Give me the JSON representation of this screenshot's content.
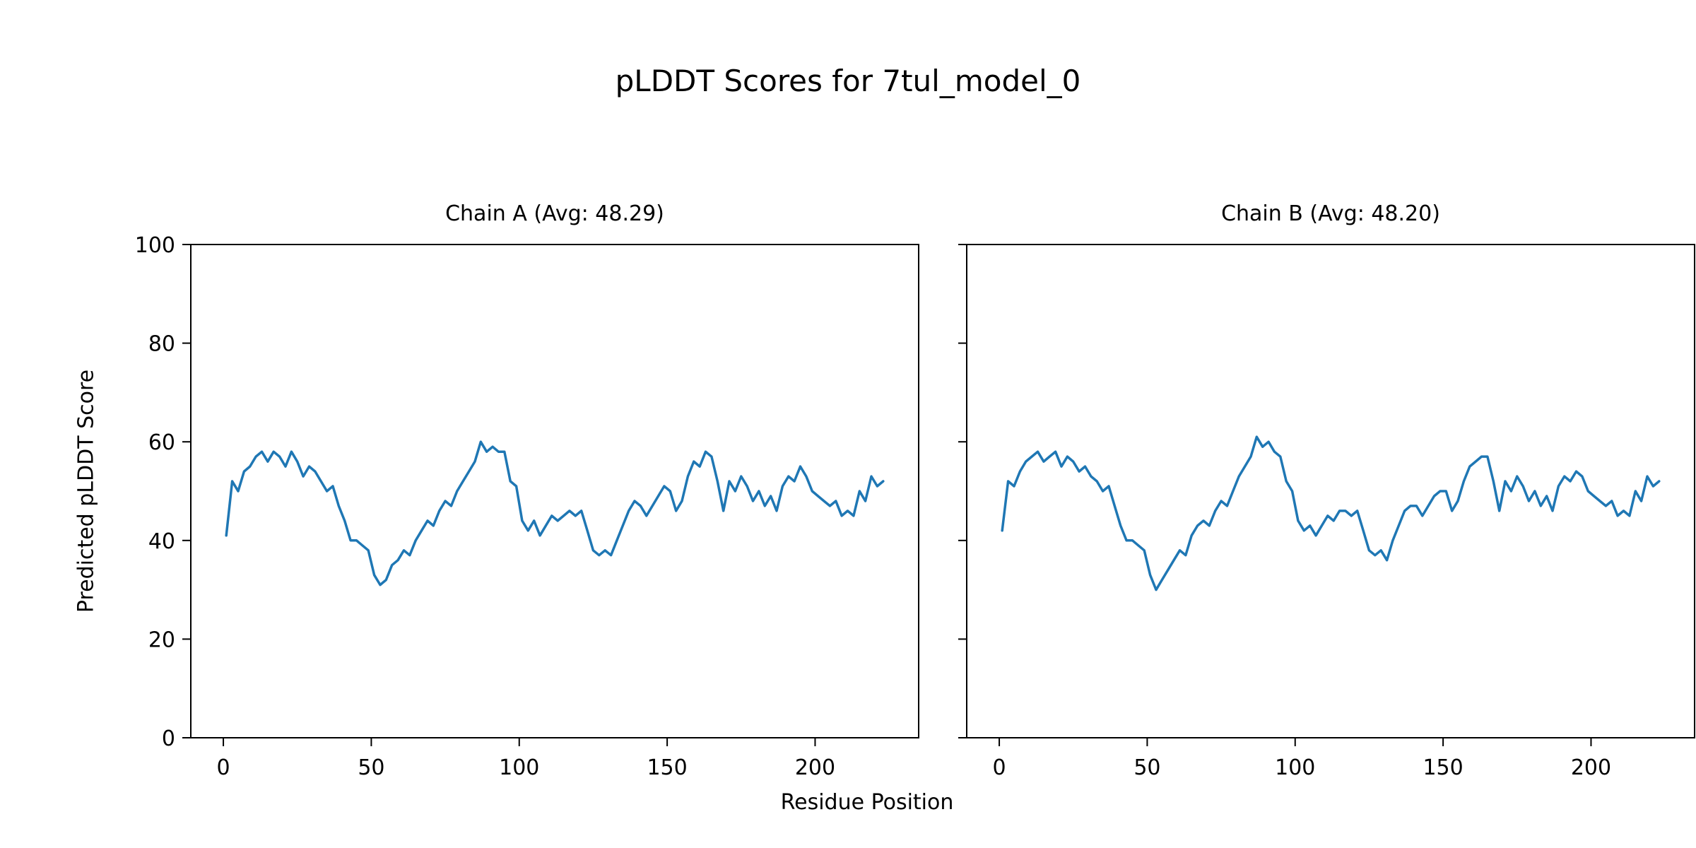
{
  "chart_data": {
    "type": "line",
    "suptitle": "pLDDT Scores for 7tul_model_0",
    "xlabel": "Residue Position",
    "ylabel": "Predicted pLDDT Score",
    "line_color": "#1f77b4",
    "background": "#ffffff",
    "grid": false,
    "legend": "none",
    "xlim": [
      -11,
      235
    ],
    "ylim": [
      0,
      100
    ],
    "xticks": [
      0,
      50,
      100,
      150,
      200
    ],
    "yticks": [
      0,
      20,
      40,
      60,
      80,
      100
    ],
    "x": [
      1,
      3,
      5,
      7,
      9,
      11,
      13,
      15,
      17,
      19,
      21,
      23,
      25,
      27,
      29,
      31,
      33,
      35,
      37,
      39,
      41,
      43,
      45,
      47,
      49,
      51,
      53,
      55,
      57,
      59,
      61,
      63,
      65,
      67,
      69,
      71,
      73,
      75,
      77,
      79,
      81,
      83,
      85,
      87,
      89,
      91,
      93,
      95,
      97,
      99,
      101,
      103,
      105,
      107,
      109,
      111,
      113,
      115,
      117,
      119,
      121,
      123,
      125,
      127,
      129,
      131,
      133,
      135,
      137,
      139,
      141,
      143,
      145,
      147,
      149,
      151,
      153,
      155,
      157,
      159,
      161,
      163,
      165,
      167,
      169,
      171,
      173,
      175,
      177,
      179,
      181,
      183,
      185,
      187,
      189,
      191,
      193,
      195,
      197,
      199,
      201,
      203,
      205,
      207,
      209,
      211,
      213,
      215,
      217,
      219,
      221,
      223
    ],
    "charts": [
      {
        "title": "Chain A (Avg: 48.29)",
        "avg": 48.29,
        "show_y_tick_labels": true,
        "y": [
          41,
          52,
          50,
          54,
          55,
          57,
          58,
          56,
          58,
          57,
          55,
          58,
          56,
          53,
          55,
          54,
          52,
          50,
          51,
          47,
          44,
          40,
          40,
          39,
          38,
          33,
          31,
          32,
          35,
          36,
          38,
          37,
          40,
          42,
          44,
          43,
          46,
          48,
          47,
          50,
          52,
          54,
          56,
          60,
          58,
          59,
          58,
          58,
          52,
          51,
          44,
          42,
          44,
          41,
          43,
          45,
          44,
          45,
          46,
          45,
          46,
          42,
          38,
          37,
          38,
          37,
          40,
          43,
          46,
          48,
          47,
          45,
          47,
          49,
          51,
          50,
          46,
          48,
          53,
          56,
          55,
          58,
          57,
          52,
          46,
          52,
          50,
          53,
          51,
          48,
          50,
          47,
          49,
          46,
          51,
          53,
          52,
          55,
          53,
          50,
          49,
          48,
          47,
          48,
          45,
          46,
          45,
          50,
          48,
          53,
          51,
          52
        ]
      },
      {
        "title": "Chain B (Avg: 48.20)",
        "avg": 48.2,
        "show_y_tick_labels": false,
        "y": [
          42,
          52,
          51,
          54,
          56,
          57,
          58,
          56,
          57,
          58,
          55,
          57,
          56,
          54,
          55,
          53,
          52,
          50,
          51,
          47,
          43,
          40,
          40,
          39,
          38,
          33,
          30,
          32,
          34,
          36,
          38,
          37,
          41,
          43,
          44,
          43,
          46,
          48,
          47,
          50,
          53,
          55,
          57,
          61,
          59,
          60,
          58,
          57,
          52,
          50,
          44,
          42,
          43,
          41,
          43,
          45,
          44,
          46,
          46,
          45,
          46,
          42,
          38,
          37,
          38,
          36,
          40,
          43,
          46,
          47,
          47,
          45,
          47,
          49,
          50,
          50,
          46,
          48,
          52,
          55,
          56,
          57,
          57,
          52,
          46,
          52,
          50,
          53,
          51,
          48,
          50,
          47,
          49,
          46,
          51,
          53,
          52,
          54,
          53,
          50,
          49,
          48,
          47,
          48,
          45,
          46,
          45,
          50,
          48,
          53,
          51,
          52
        ]
      }
    ]
  }
}
